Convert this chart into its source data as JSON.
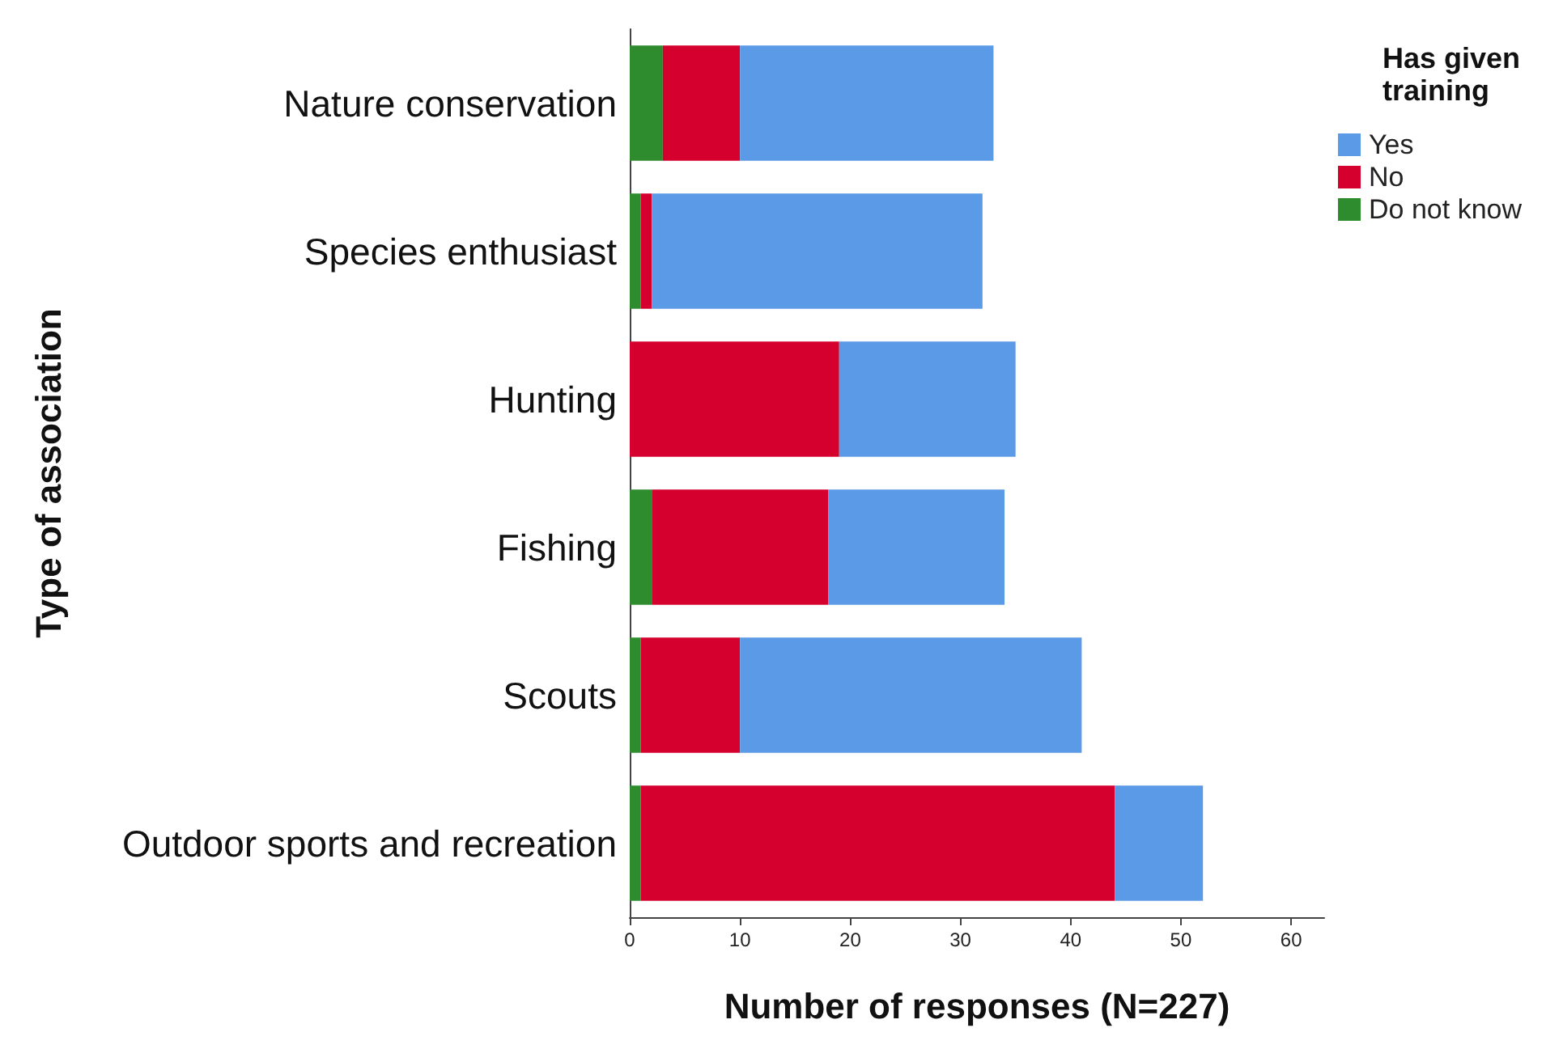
{
  "chart_data": {
    "type": "bar",
    "orientation": "horizontal",
    "stacked": true,
    "xlabel": "Number of responses (N=227)",
    "ylabel": "Type of association",
    "legend_title": "Has given training",
    "legend": "top right",
    "grid": false,
    "categories": [
      "Nature conservation",
      "Species enthusiast",
      "Hunting",
      "Fishing",
      "Scouts",
      "Outdoor sports and recreation"
    ],
    "series": [
      {
        "name": "Do not know",
        "color": "#2e8b2e",
        "values": [
          3,
          1,
          0,
          2,
          1,
          1
        ]
      },
      {
        "name": "No",
        "color": "#d6002e",
        "values": [
          7,
          1,
          19,
          16,
          9,
          43
        ]
      },
      {
        "name": "Yes",
        "color": "#5a9ae6",
        "values": [
          23,
          30,
          16,
          16,
          31,
          8
        ]
      }
    ],
    "xlim": [
      0,
      63
    ],
    "xticks": [
      0,
      10,
      20,
      30,
      40,
      50,
      60
    ]
  }
}
